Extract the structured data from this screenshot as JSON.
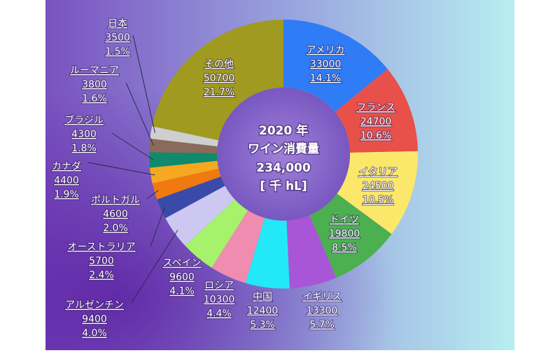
{
  "chart_data": {
    "type": "donut",
    "center_text": [
      "2020 年",
      "ワイン消費量",
      "234,000",
      "[ 千 hL]"
    ],
    "categories": [
      "アメリカ",
      "フランス",
      "イタリア",
      "ドイツ",
      "イギリス",
      "中国",
      "ロシア",
      "スペイン",
      "アルゼンチン",
      "オーストラリア",
      "ポルトガル",
      "カナダ",
      "ブラジル",
      "ルーマニア",
      "日本",
      "その他"
    ],
    "values": [
      33000,
      24700,
      24500,
      19800,
      13300,
      12400,
      10300,
      9600,
      9400,
      5700,
      4600,
      4400,
      4300,
      3800,
      3500,
      50700
    ],
    "percent_labels": [
      "14.1%",
      "10.6%",
      "10.5%",
      "8.5%",
      "5.7%",
      "5.3%",
      "4.4%",
      "4.1%",
      "4.0%",
      "2.4%",
      "2.0%",
      "1.9%",
      "1.8%",
      "1.6%",
      "1.5%",
      "21.7%"
    ],
    "colors": [
      "#2f7cf6",
      "#e8504a",
      "#fbe86a",
      "#4caf50",
      "#a855d8",
      "#22e8f8",
      "#f08cb0",
      "#a6f26a",
      "#cdc8f2",
      "#3a4aa8",
      "#f07a10",
      "#f6a820",
      "#0f8a6a",
      "#8a6a5a",
      "#cfcfcf",
      "#a09a20"
    ]
  }
}
